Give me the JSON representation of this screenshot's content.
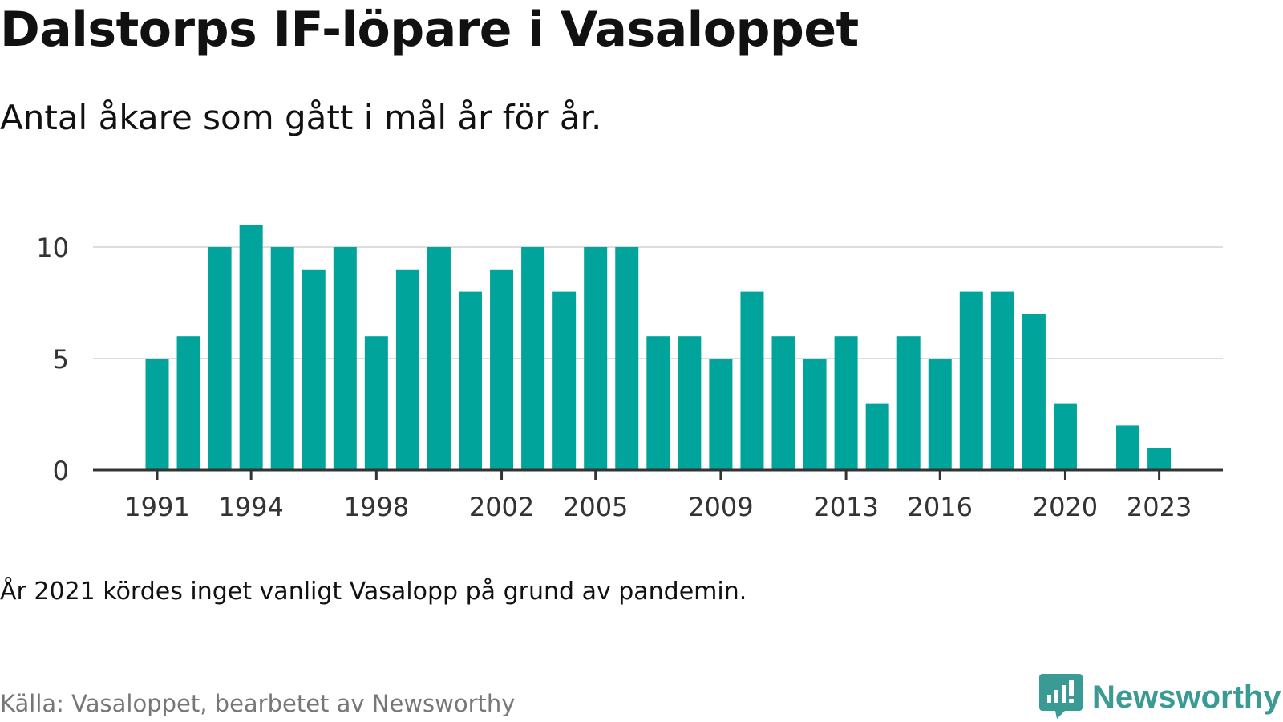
{
  "header": {
    "title": "Dalstorps IF-löpare i Vasaloppet",
    "subtitle": "Antal åkare som gått i mål år för år."
  },
  "footer": {
    "note": "År 2021 kördes inget vanligt Vasalopp på grund av pandemin.",
    "source": "Källa: Vasaloppet, bearbetet av Newsworthy",
    "brand": "Newsworthy"
  },
  "colors": {
    "bar": "#00a49a",
    "grid": "#dddddd",
    "axis": "#333333",
    "brand": "#3a9a94"
  },
  "chart_data": {
    "type": "bar",
    "x": [
      1991,
      1992,
      1993,
      1994,
      1995,
      1996,
      1997,
      1998,
      1999,
      2000,
      2001,
      2002,
      2003,
      2004,
      2005,
      2006,
      2007,
      2008,
      2009,
      2010,
      2011,
      2012,
      2013,
      2014,
      2015,
      2016,
      2017,
      2018,
      2019,
      2020,
      2021,
      2022,
      2023
    ],
    "values": [
      5,
      6,
      10,
      11,
      10,
      9,
      10,
      6,
      9,
      10,
      8,
      9,
      10,
      8,
      10,
      10,
      6,
      6,
      5,
      8,
      6,
      5,
      6,
      3,
      6,
      5,
      8,
      8,
      7,
      3,
      null,
      2,
      1
    ],
    "x_tick_labels": [
      "1991",
      "1994",
      "1998",
      "2002",
      "2005",
      "2009",
      "2013",
      "2016",
      "2020",
      "2023"
    ],
    "y_ticks": [
      0,
      5,
      10
    ],
    "ylim": [
      0,
      11
    ],
    "grid": true
  }
}
